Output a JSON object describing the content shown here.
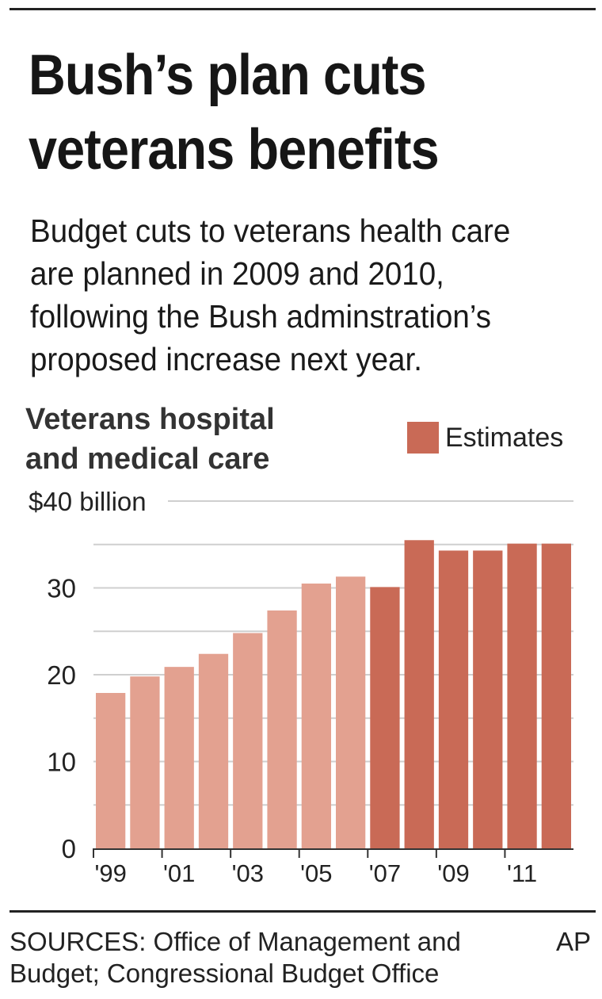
{
  "headline": [
    "Bush’s plan cuts",
    "veterans benefits"
  ],
  "subtitle": [
    "Budget cuts to veterans health care",
    "are planned in 2009 and 2010,",
    "following the Bush adminstration’s",
    "proposed increase next year."
  ],
  "legend": {
    "label": "Estimates"
  },
  "colors": {
    "actual": "#e3a190",
    "estimate": "#c96a56",
    "grid": "#cfcfcf",
    "rule": "#222222"
  },
  "footer": {
    "sources": [
      "SOURCES: Office of Management and",
      "Budget; Congressional Budget Office"
    ],
    "credit": "AP"
  },
  "chart_data": {
    "type": "bar",
    "title": [
      "Veterans hospital",
      "and medical care"
    ],
    "ylim": [
      0,
      40
    ],
    "yticks": [
      {
        "value": 0,
        "label": "0"
      },
      {
        "value": 10,
        "label": "10"
      },
      {
        "value": 20,
        "label": "20"
      },
      {
        "value": 30,
        "label": "30"
      },
      {
        "value": 40,
        "label": "$40 billion"
      }
    ],
    "grid": true,
    "x_tick_labels": [
      "'99",
      "'01",
      "'03",
      "'05",
      "'07",
      "'09",
      "'11"
    ],
    "categories": [
      "1999",
      "2000",
      "2001",
      "2002",
      "2003",
      "2004",
      "2005",
      "2006",
      "2007",
      "2008",
      "2009",
      "2010",
      "2011",
      "2012"
    ],
    "values": [
      17.9,
      19.8,
      20.9,
      22.4,
      24.8,
      27.4,
      30.5,
      31.3,
      30.1,
      35.5,
      34.3,
      34.3,
      35.1,
      35.1
    ],
    "estimate": [
      false,
      false,
      false,
      false,
      false,
      false,
      false,
      false,
      true,
      true,
      true,
      true,
      true,
      true
    ],
    "legend_position": "top-right"
  }
}
